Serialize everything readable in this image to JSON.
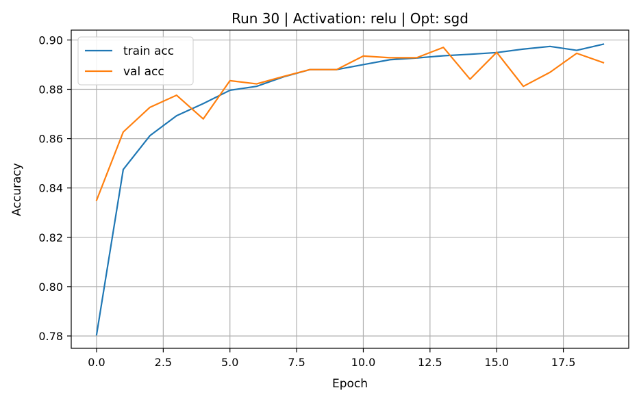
{
  "chart_data": {
    "type": "line",
    "title": "Run 30 | Activation: relu | Opt: sgd",
    "xlabel": "Epoch",
    "ylabel": "Accuracy",
    "xlim": [
      -0.95,
      19.95
    ],
    "ylim": [
      0.775,
      0.904
    ],
    "xticks": [
      0.0,
      2.5,
      5.0,
      7.5,
      10.0,
      12.5,
      15.0,
      17.5
    ],
    "xtick_labels": [
      "0.0",
      "2.5",
      "5.0",
      "7.5",
      "10.0",
      "12.5",
      "15.0",
      "17.5"
    ],
    "yticks": [
      0.78,
      0.8,
      0.82,
      0.84,
      0.86,
      0.88,
      0.9
    ],
    "ytick_labels": [
      "0.78",
      "0.80",
      "0.82",
      "0.84",
      "0.86",
      "0.88",
      "0.90"
    ],
    "grid": true,
    "legend_position": "top-left",
    "x": [
      0,
      1,
      2,
      3,
      4,
      5,
      6,
      7,
      8,
      9,
      10,
      11,
      12,
      13,
      14,
      15,
      16,
      17,
      18,
      19
    ],
    "series": [
      {
        "name": "train acc",
        "color": "#1f77b4",
        "values": [
          0.7805,
          0.8475,
          0.8612,
          0.8693,
          0.8742,
          0.8796,
          0.8812,
          0.885,
          0.888,
          0.888,
          0.89,
          0.892,
          0.8927,
          0.8936,
          0.8942,
          0.8949,
          0.8963,
          0.8974,
          0.8958,
          0.8983
        ]
      },
      {
        "name": "val acc",
        "color": "#ff7f0e",
        "values": [
          0.835,
          0.8627,
          0.8727,
          0.8776,
          0.868,
          0.8835,
          0.8822,
          0.8852,
          0.888,
          0.888,
          0.8935,
          0.8928,
          0.8928,
          0.897,
          0.8841,
          0.895,
          0.8812,
          0.8869,
          0.8946,
          0.8908
        ]
      }
    ]
  }
}
